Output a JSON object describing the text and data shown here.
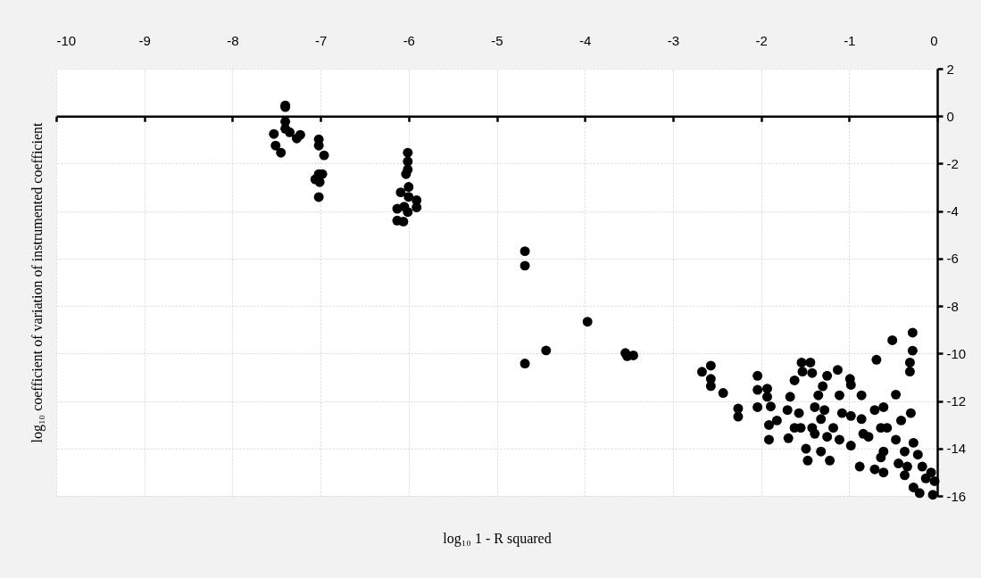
{
  "chart_data": {
    "type": "scatter",
    "xlabel": "log₁₀ 1 - R squared",
    "ylabel": "log₁₀ coefficient of variation of instrumented coefficient",
    "xlim": [
      -10,
      0
    ],
    "ylim": [
      -16,
      2
    ],
    "xticks": [
      -10,
      -9,
      -8,
      -7,
      -6,
      -5,
      -4,
      -3,
      -2,
      -1,
      0
    ],
    "yticks": [
      -16,
      -14,
      -12,
      -10,
      -8,
      -6,
      -4,
      -2,
      0,
      2
    ],
    "grid": true,
    "marker": "circle",
    "series": [
      {
        "color": "#000000",
        "x": [
          -7.4,
          -7.4,
          -7.4,
          -7.4,
          -7.35,
          -7.27,
          -7.23,
          -7.53,
          -7.51,
          -7.45,
          -7.02,
          -7.02,
          -6.96,
          -7.02,
          -6.98,
          -7.06,
          -7.01,
          -7.02,
          -6.01,
          -6.01,
          -6.01,
          -6.03,
          -6.0,
          -6.09,
          -6.0,
          -5.91,
          -5.91,
          -6.13,
          -6.05,
          -6.01,
          -6.13,
          -6.06,
          -4.68,
          -4.68,
          -4.68,
          -4.44,
          -3.97,
          -3.54,
          -3.52,
          -3.45,
          -2.67,
          -2.57,
          -2.57,
          -2.57,
          -2.43,
          -2.26,
          -2.26,
          -2.04,
          -2.04,
          -2.04,
          -1.93,
          -1.93,
          -1.89,
          -1.91,
          -1.91,
          -1.82,
          -1.67,
          -1.7,
          -1.69,
          -1.54,
          -1.44,
          -1.53,
          -1.62,
          -1.42,
          -1.57,
          -1.55,
          -1.47,
          -1.49,
          -1.25,
          -1.13,
          -1.3,
          -1.35,
          -1.39,
          -1.32,
          -1.39,
          -1.32,
          -1.22,
          -1.18,
          -1.11,
          -1.08,
          -1.11,
          -0.99,
          -0.98,
          -0.98,
          -0.98,
          -0.86,
          -0.86,
          -0.88,
          -0.78,
          -0.69,
          -0.71,
          -0.71,
          -0.61,
          -0.57,
          -0.61,
          -0.61,
          -0.51,
          -0.47,
          -0.47,
          -0.41,
          -0.44,
          -0.3,
          -0.27,
          -0.28,
          -0.31,
          -0.31,
          -0.34,
          -0.22,
          -0.17,
          -0.2,
          -0.27,
          -0.37,
          -0.07,
          -0.05,
          -0.03,
          -0.13,
          -0.28,
          -1.42,
          -1.25,
          -1.28,
          -1.62,
          -0.64,
          -0.84,
          -0.64,
          -0.37
        ],
        "values": [
          0.45,
          0.38,
          -0.23,
          -0.53,
          -0.68,
          -0.94,
          -0.79,
          -0.75,
          -1.24,
          -1.54,
          -0.98,
          -1.24,
          -1.65,
          -2.44,
          -2.44,
          -2.66,
          -2.78,
          -3.41,
          -1.54,
          -1.91,
          -2.25,
          -2.44,
          -2.98,
          -3.21,
          -3.4,
          -3.54,
          -3.84,
          -3.9,
          -3.81,
          -4.04,
          -4.4,
          -4.44,
          -5.69,
          -6.3,
          -10.42,
          -9.87,
          -8.66,
          -9.98,
          -10.11,
          -10.08,
          -10.77,
          -10.51,
          -11.07,
          -11.37,
          -11.66,
          -12.32,
          -12.66,
          -10.94,
          -11.53,
          -12.26,
          -11.48,
          -11.82,
          -12.23,
          -13.01,
          -13.63,
          -12.82,
          -11.82,
          -12.38,
          -13.57,
          -10.38,
          -10.38,
          -10.76,
          -11.13,
          -10.82,
          -12.51,
          -13.13,
          -14.51,
          -14.01,
          -10.94,
          -10.69,
          -11.38,
          -11.76,
          -12.26,
          -12.76,
          -13.38,
          -14.13,
          -14.51,
          -13.13,
          -11.76,
          -12.51,
          -13.63,
          -11.07,
          -11.32,
          -12.63,
          -13.88,
          -11.76,
          -12.76,
          -14.76,
          -13.51,
          -10.26,
          -12.38,
          -14.88,
          -12.26,
          -13.13,
          -14.13,
          -15.01,
          -9.44,
          -11.73,
          -13.63,
          -12.82,
          -14.63,
          -12.51,
          -13.76,
          -9.88,
          -10.38,
          -10.76,
          -14.76,
          -14.26,
          -14.76,
          -15.88,
          -15.64,
          -15.13,
          -15.01,
          -15.95,
          -15.38,
          -15.26,
          -9.12,
          -13.13,
          -13.51,
          -12.38,
          -13.13,
          -13.13,
          -13.38,
          -14.38,
          -14.13
        ]
      }
    ]
  }
}
